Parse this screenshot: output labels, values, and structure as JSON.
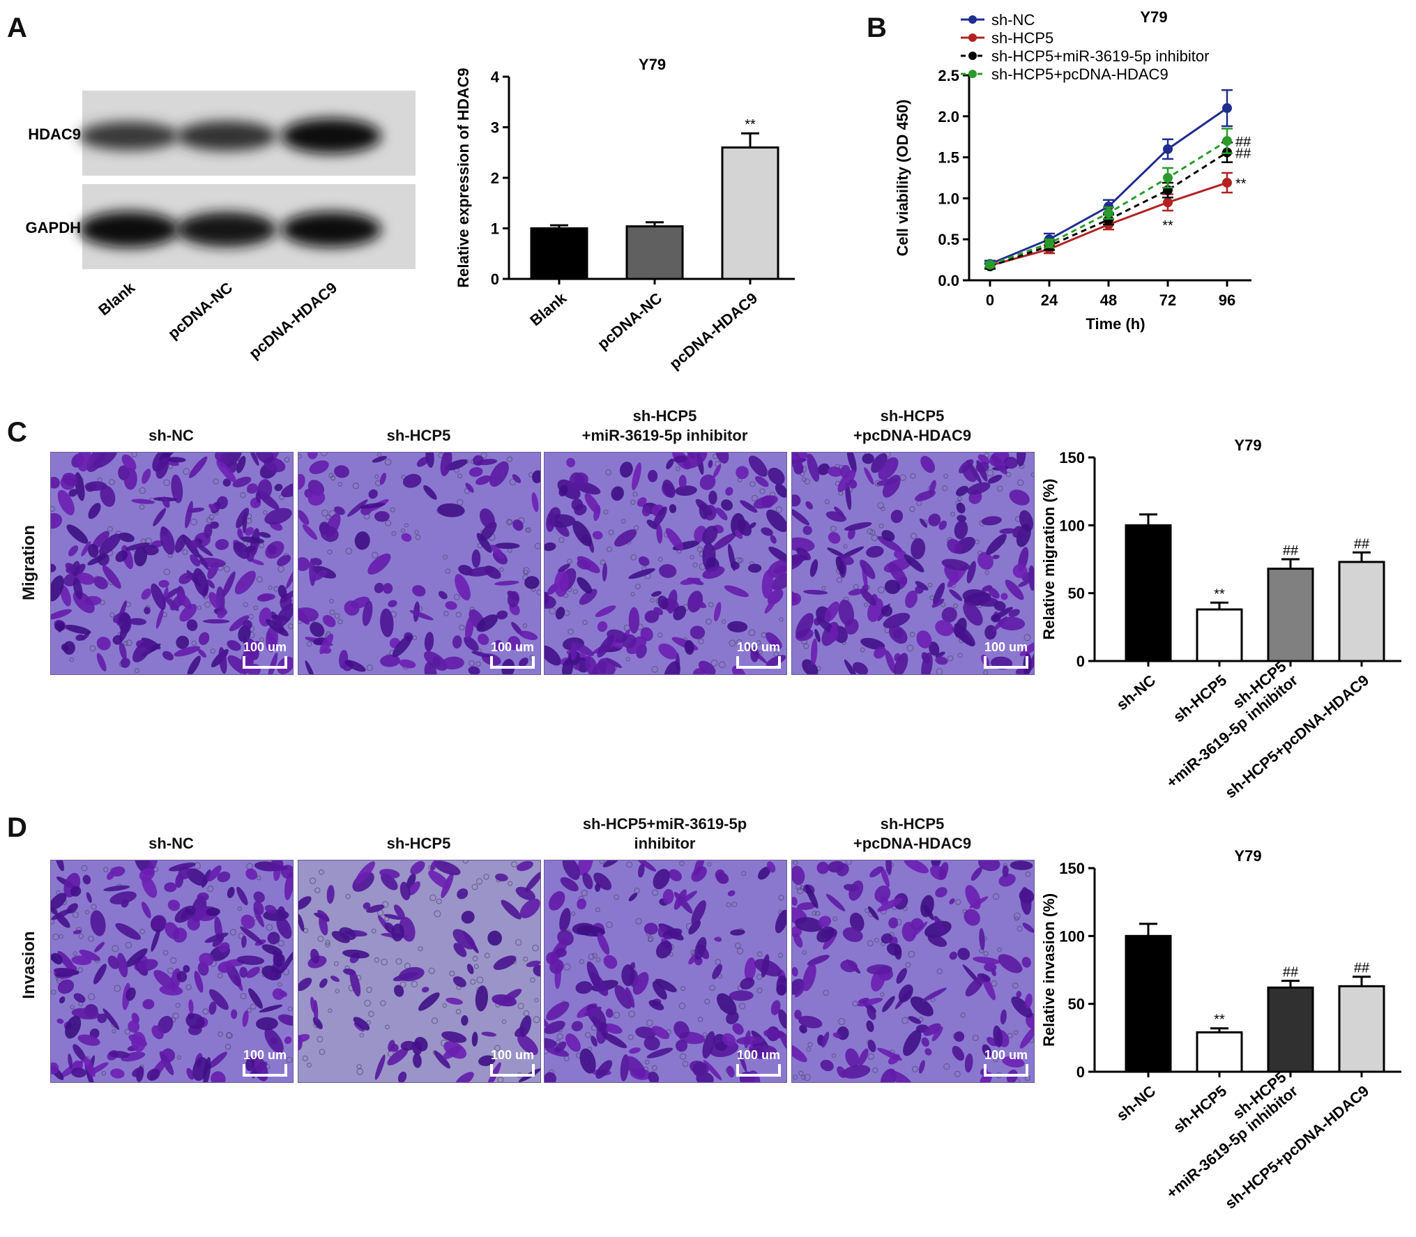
{
  "panels": {
    "A": {
      "letter": "A",
      "blot": {
        "bands": [
          {
            "label": "HDAC9",
            "intensities": [
              0.55,
              0.62,
              0.95
            ]
          },
          {
            "label": "GAPDH",
            "intensities": [
              1.0,
              0.92,
              0.95
            ]
          }
        ],
        "lanes": [
          "Blank",
          "pcDNA-NC",
          "pcDNA-HDAC9"
        ]
      }
    },
    "B": {
      "letter": "B"
    },
    "C": {
      "letter": "C",
      "row_label": "Migration",
      "conditions": [
        {
          "title_lines": [
            "sh-NC"
          ],
          "density": 1.0
        },
        {
          "title_lines": [
            "sh-HCP5"
          ],
          "density": 0.45
        },
        {
          "title_lines": [
            "sh-HCP5",
            "+miR-3619-5p inhibitor"
          ],
          "density": 0.75
        },
        {
          "title_lines": [
            "sh-HCP5",
            "+pcDNA-HDAC9"
          ],
          "density": 0.8
        }
      ],
      "scale_label": "100 um"
    },
    "D": {
      "letter": "D",
      "row_label": "Invasion",
      "conditions": [
        {
          "title_lines": [
            "sh-NC"
          ],
          "density": 0.9
        },
        {
          "title_lines": [
            "sh-HCP5"
          ],
          "density": 0.35
        },
        {
          "title_lines": [
            "sh-HCP5+miR-3619-5p",
            "inhibitor"
          ],
          "density": 0.6
        },
        {
          "title_lines": [
            "sh-HCP5",
            "+pcDNA-HDAC9"
          ],
          "density": 0.6
        }
      ],
      "scale_label": "100 um"
    }
  },
  "chart_data": [
    {
      "id": "A-bar",
      "type": "bar",
      "title": "Y79",
      "ylabel": "Relative expression of HDAC9",
      "xlabel": "",
      "ylim": [
        0,
        4
      ],
      "yticks": [
        0,
        1,
        2,
        3,
        4
      ],
      "categories": [
        "Blank",
        "pcDNA-NC",
        "pcDNA-HDAC9"
      ],
      "values": [
        1.0,
        1.04,
        2.6
      ],
      "errors": [
        0.06,
        0.08,
        0.28
      ],
      "fills": [
        "#000000",
        "#606060",
        "#d4d4d4"
      ],
      "annotations": [
        "",
        "",
        "**"
      ]
    },
    {
      "id": "B-line",
      "type": "line",
      "title": "Y79",
      "ylabel": "Cell viability (OD 450)",
      "xlabel": "Time (h)",
      "xticks": [
        0,
        24,
        48,
        72,
        96
      ],
      "ylim": [
        0,
        2.5
      ],
      "yticks": [
        "0.0",
        "0.5",
        "1.0",
        "1.5",
        "2.0",
        "2.5"
      ],
      "legend_position": "top-left",
      "series": [
        {
          "name": "sh-NC",
          "color": "#1f2d8f",
          "dashed": false,
          "x": [
            0,
            24,
            48,
            72,
            96
          ],
          "y": [
            0.2,
            0.5,
            0.9,
            1.6,
            2.1
          ],
          "err": [
            0.04,
            0.07,
            0.08,
            0.12,
            0.22
          ],
          "end_mark": ""
        },
        {
          "name": "sh-HCP5",
          "color": "#b22222",
          "dashed": false,
          "x": [
            0,
            24,
            48,
            72,
            96
          ],
          "y": [
            0.18,
            0.38,
            0.68,
            0.95,
            1.19
          ],
          "err": [
            0.03,
            0.05,
            0.06,
            0.1,
            0.12
          ],
          "end_mark": "**"
        },
        {
          "name": "sh-HCP5+miR-3619-5p inhibitor",
          "color": "#000000",
          "dashed": true,
          "x": [
            0,
            24,
            48,
            72,
            96
          ],
          "y": [
            0.17,
            0.42,
            0.74,
            1.1,
            1.56
          ],
          "err": [
            0.03,
            0.05,
            0.06,
            0.09,
            0.12
          ],
          "end_mark": "##"
        },
        {
          "name": "sh-HCP5+pcDNA-HDAC9",
          "color": "#2a9a2a",
          "dashed": true,
          "x": [
            0,
            24,
            48,
            72,
            96
          ],
          "y": [
            0.19,
            0.45,
            0.82,
            1.25,
            1.7
          ],
          "err": [
            0.03,
            0.05,
            0.07,
            0.12,
            0.15
          ],
          "end_mark": "##"
        }
      ],
      "point_annotation": {
        "x": 72,
        "label": "**"
      }
    },
    {
      "id": "C-bar",
      "type": "bar",
      "title": "Y79",
      "ylabel": "Relative migration (%)",
      "xlabel": "",
      "ylim": [
        0,
        150
      ],
      "yticks": [
        0,
        50,
        100,
        150
      ],
      "categories": [
        "sh-NC",
        "sh-HCP5",
        "sh-HCP5\n+miR-3619-5p inhibitor",
        "sh-HCP5+pcDNA-HDAC9"
      ],
      "values": [
        100,
        38,
        68,
        73
      ],
      "errors": [
        8,
        5,
        7,
        7
      ],
      "fills": [
        "#000000",
        "#ffffff",
        "#808080",
        "#d4d4d4"
      ],
      "annotations": [
        "",
        "**",
        "##",
        "##"
      ]
    },
    {
      "id": "D-bar",
      "type": "bar",
      "title": "Y79",
      "ylabel": "Relative invasion (%)",
      "xlabel": "",
      "ylim": [
        0,
        150
      ],
      "yticks": [
        0,
        50,
        100,
        150
      ],
      "categories": [
        "sh-NC",
        "sh-HCP5",
        "sh-HCP5\n+miR-3619-5p inhibitor",
        "sh-HCP5+pcDNA-HDAC9"
      ],
      "values": [
        100,
        29,
        62,
        63
      ],
      "errors": [
        9,
        3,
        5,
        7
      ],
      "fills": [
        "#000000",
        "#ffffff",
        "#303030",
        "#d4d4d4"
      ],
      "annotations": [
        "",
        "**",
        "##",
        "##"
      ]
    }
  ]
}
